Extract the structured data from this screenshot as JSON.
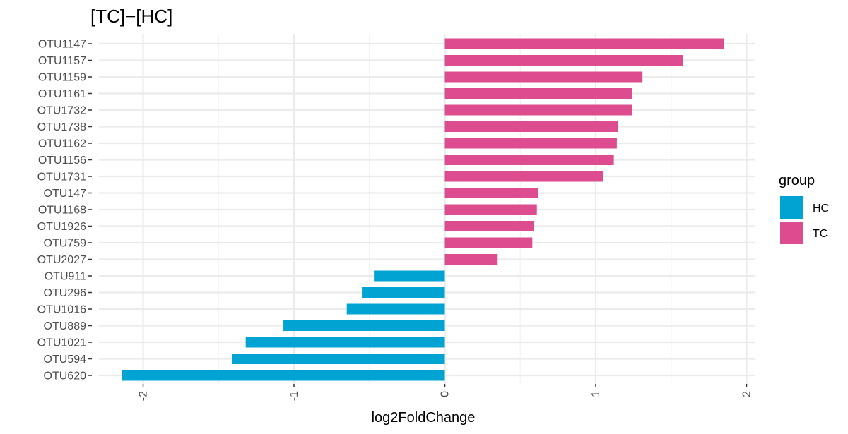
{
  "chart_data": {
    "type": "bar",
    "orientation": "horizontal",
    "title": "[TC]−[HC]",
    "xlabel": "log2FoldChange",
    "ylabel": "",
    "xlim": [
      -2.15,
      2.05
    ],
    "x_ticks": [
      "-2",
      "-1",
      "0",
      "1",
      "2"
    ],
    "grid": true,
    "legend_position": "right",
    "legend_title": "group",
    "legend": [
      {
        "name": "HC",
        "color": "#00A3D1"
      },
      {
        "name": "TC",
        "color": "#DD4C8E"
      }
    ],
    "categories": [
      "OTU1147",
      "OTU1157",
      "OTU1159",
      "OTU1161",
      "OTU1732",
      "OTU1738",
      "OTU1162",
      "OTU1156",
      "OTU1731",
      "OTU147",
      "OTU1168",
      "OTU1926",
      "OTU759",
      "OTU2027",
      "OTU911",
      "OTU296",
      "OTU1016",
      "OTU889",
      "OTU1021",
      "OTU594",
      "OTU620"
    ],
    "values": [
      1.85,
      1.58,
      1.31,
      1.24,
      1.24,
      1.15,
      1.14,
      1.12,
      1.05,
      0.62,
      0.61,
      0.59,
      0.58,
      0.35,
      -0.47,
      -0.55,
      -0.65,
      -1.07,
      -1.32,
      -1.41,
      -2.14
    ],
    "groups": [
      "TC",
      "TC",
      "TC",
      "TC",
      "TC",
      "TC",
      "TC",
      "TC",
      "TC",
      "TC",
      "TC",
      "TC",
      "TC",
      "TC",
      "HC",
      "HC",
      "HC",
      "HC",
      "HC",
      "HC",
      "HC"
    ]
  }
}
